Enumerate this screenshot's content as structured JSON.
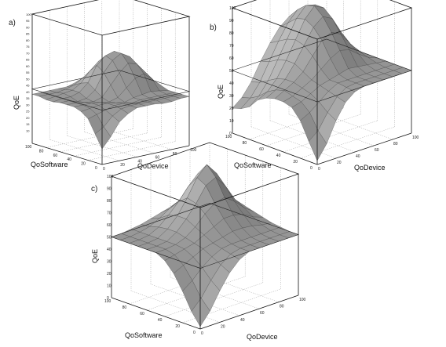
{
  "chart_data": [
    {
      "panel": "a)",
      "type": "surface3d",
      "xlabel": "QoDevice",
      "ylabel": "QoSoftware",
      "zlabel": "QoE",
      "xlim": [
        0,
        100
      ],
      "ylim": [
        0,
        100
      ],
      "zlim": [
        0,
        100
      ],
      "x_ticks": [
        "0",
        "20",
        "40",
        "60",
        "80",
        "100"
      ],
      "y_ticks": [
        "0",
        "20",
        "40",
        "60",
        "80",
        "100"
      ],
      "z_ticks": [
        "10",
        "15",
        "20",
        "25",
        "30",
        "35",
        "40",
        "45",
        "50",
        "55",
        "60",
        "65",
        "70",
        "75",
        "80",
        "85",
        "90",
        "95",
        "100"
      ],
      "x": [
        0,
        10,
        20,
        30,
        40,
        50,
        60,
        70,
        80,
        90,
        100
      ],
      "y": [
        0,
        10,
        20,
        30,
        40,
        50,
        60,
        70,
        80,
        90,
        100
      ],
      "z": [
        [
          12,
          20,
          30,
          35,
          38,
          38,
          38,
          37,
          37,
          38,
          38
        ],
        [
          22,
          26,
          33,
          37,
          38,
          38,
          38,
          38,
          38,
          38,
          38
        ],
        [
          32,
          34,
          36,
          38,
          38,
          37,
          38,
          38,
          38,
          38,
          38
        ],
        [
          36,
          37,
          38,
          38,
          37,
          36,
          38,
          39,
          40,
          39,
          38
        ],
        [
          38,
          38,
          38,
          37,
          36,
          38,
          44,
          50,
          52,
          46,
          40
        ],
        [
          38,
          38,
          37,
          36,
          38,
          46,
          54,
          60,
          58,
          50,
          42
        ],
        [
          38,
          38,
          36,
          37,
          42,
          54,
          62,
          66,
          62,
          52,
          42
        ],
        [
          37,
          38,
          38,
          40,
          46,
          58,
          64,
          66,
          60,
          50,
          40
        ],
        [
          37,
          38,
          39,
          40,
          44,
          52,
          58,
          58,
          52,
          44,
          38
        ],
        [
          38,
          38,
          38,
          39,
          41,
          45,
          48,
          47,
          44,
          40,
          38
        ],
        [
          38,
          38,
          38,
          38,
          38,
          40,
          41,
          40,
          39,
          38,
          38
        ]
      ]
    },
    {
      "panel": "b)",
      "type": "surface3d",
      "xlabel": "QoDevice",
      "ylabel": "QoSoftware",
      "zlabel": "QoE",
      "xlim": [
        0,
        100
      ],
      "ylim": [
        0,
        100
      ],
      "zlim": [
        0,
        100
      ],
      "x_ticks": [
        "0",
        "20",
        "40",
        "60",
        "80",
        "100"
      ],
      "y_ticks": [
        "0",
        "20",
        "40",
        "60",
        "80",
        "100"
      ],
      "z_ticks": [
        "0",
        "10",
        "20",
        "30",
        "40",
        "50",
        "60",
        "70",
        "80",
        "90",
        "100"
      ],
      "x": [
        0,
        10,
        20,
        30,
        40,
        50,
        60,
        70,
        80,
        90,
        100
      ],
      "y": [
        0,
        10,
        20,
        30,
        40,
        50,
        60,
        70,
        80,
        90,
        100
      ],
      "z": [
        [
          3,
          14,
          30,
          42,
          48,
          50,
          50,
          50,
          50,
          50,
          50
        ],
        [
          16,
          22,
          34,
          44,
          49,
          50,
          50,
          50,
          50,
          50,
          50
        ],
        [
          30,
          34,
          40,
          46,
          50,
          50,
          50,
          50,
          50,
          50,
          50
        ],
        [
          38,
          40,
          44,
          48,
          50,
          52,
          54,
          53,
          52,
          51,
          50
        ],
        [
          40,
          42,
          46,
          50,
          56,
          62,
          66,
          64,
          58,
          53,
          50
        ],
        [
          40,
          44,
          48,
          54,
          64,
          74,
          78,
          74,
          64,
          55,
          50
        ],
        [
          38,
          42,
          48,
          58,
          70,
          82,
          88,
          84,
          70,
          58,
          50
        ],
        [
          34,
          38,
          46,
          58,
          72,
          86,
          94,
          90,
          74,
          58,
          50
        ],
        [
          26,
          32,
          42,
          56,
          70,
          84,
          92,
          90,
          74,
          58,
          50
        ],
        [
          22,
          28,
          38,
          52,
          66,
          78,
          86,
          84,
          70,
          56,
          50
        ],
        [
          20,
          26,
          36,
          50,
          62,
          72,
          78,
          76,
          66,
          54,
          50
        ]
      ]
    },
    {
      "panel": "c)",
      "type": "surface3d",
      "xlabel": "QoDevice",
      "ylabel": "QoSoftware",
      "zlabel": "QoE",
      "xlim": [
        0,
        100
      ],
      "ylim": [
        0,
        100
      ],
      "zlim": [
        0,
        100
      ],
      "x_ticks": [
        "0",
        "20",
        "40",
        "60",
        "80",
        "100"
      ],
      "y_ticks": [
        "0",
        "20",
        "40",
        "60",
        "80",
        "100"
      ],
      "z_ticks": [
        "0",
        "10",
        "20",
        "30",
        "40",
        "50",
        "60",
        "70",
        "80",
        "90",
        "100"
      ],
      "x": [
        0,
        10,
        20,
        30,
        40,
        50,
        60,
        70,
        80,
        90,
        100
      ],
      "y": [
        0,
        10,
        20,
        30,
        40,
        50,
        60,
        70,
        80,
        90,
        100
      ],
      "z": [
        [
          2,
          12,
          26,
          38,
          46,
          50,
          50,
          50,
          50,
          50,
          50
        ],
        [
          12,
          20,
          32,
          42,
          48,
          50,
          50,
          50,
          50,
          50,
          50
        ],
        [
          26,
          32,
          40,
          46,
          50,
          51,
          51,
          51,
          51,
          51,
          51
        ],
        [
          38,
          42,
          46,
          50,
          52,
          54,
          56,
          56,
          55,
          53,
          52
        ],
        [
          46,
          48,
          50,
          52,
          56,
          60,
          64,
          64,
          62,
          57,
          54
        ],
        [
          50,
          50,
          51,
          54,
          60,
          68,
          74,
          76,
          70,
          62,
          56
        ],
        [
          50,
          50,
          51,
          56,
          64,
          74,
          86,
          90,
          80,
          66,
          58
        ],
        [
          50,
          50,
          51,
          56,
          64,
          76,
          90,
          98,
          88,
          70,
          60
        ],
        [
          50,
          50,
          51,
          55,
          62,
          70,
          80,
          88,
          82,
          68,
          58
        ],
        [
          50,
          50,
          51,
          53,
          57,
          62,
          66,
          70,
          68,
          60,
          54
        ],
        [
          50,
          50,
          51,
          52,
          54,
          56,
          58,
          60,
          58,
          54,
          52
        ]
      ]
    }
  ]
}
